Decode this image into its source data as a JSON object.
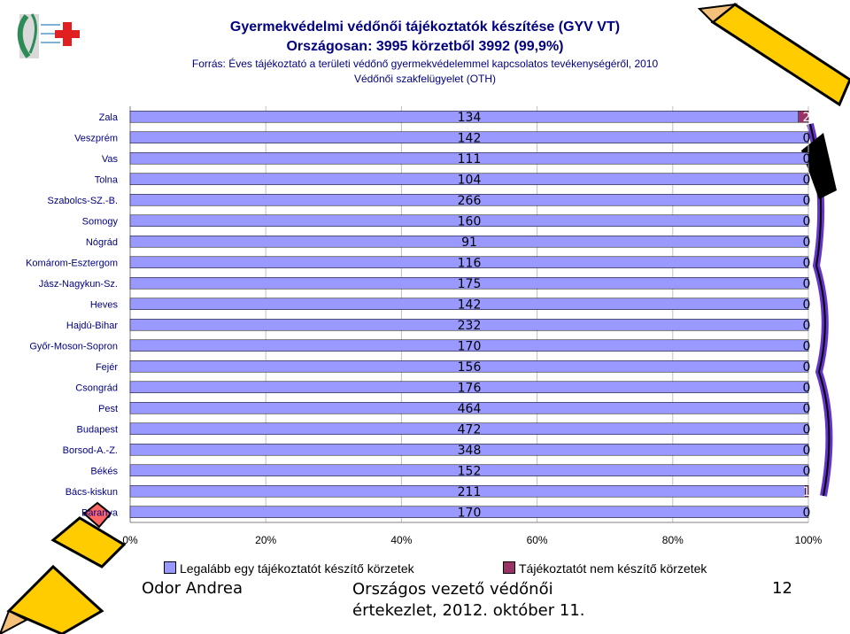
{
  "header": {
    "line1": "Gyermekvédelmi védőnői tájékoztatók készítése (GYV VT)",
    "line2": "Országosan: 3995 körzetből 3992 (99,9%)",
    "line3": "Forrás: Éves tájékoztató a területi védőnő gyermekvédelemmel kapcsolatos tevékenységéről, 2010",
    "line4": "Védőnői szakfelügyelet (OTH)"
  },
  "chart_data": {
    "type": "bar",
    "orientation": "horizontal",
    "stacked": "percent",
    "categories": [
      "Zala",
      "Veszprém",
      "Vas",
      "Tolna",
      "Szabolcs-SZ.-B.",
      "Somogy",
      "Nógrád",
      "Komárom-Esztergom",
      "Jász-Nagykun-Sz.",
      "Heves",
      "Hajdú-Bihar",
      "Győr-Moson-Sopron",
      "Fejér",
      "Csongrád",
      "Pest",
      "Budapest",
      "Borsod-A.-Z.",
      "Békés",
      "Bács-kiskun",
      "Baranya"
    ],
    "series": [
      {
        "name": "Legalább egy tájékoztatót készítő körzetek",
        "color": "#9999FF",
        "values": [
          134,
          142,
          111,
          104,
          266,
          160,
          91,
          116,
          175,
          142,
          232,
          170,
          156,
          176,
          464,
          472,
          348,
          152,
          211,
          170
        ]
      },
      {
        "name": "Tájékoztatót nem készítő körzetek",
        "color": "#993366",
        "values": [
          2,
          0,
          0,
          0,
          0,
          0,
          0,
          0,
          0,
          0,
          0,
          0,
          0,
          0,
          0,
          0,
          0,
          0,
          1,
          0
        ]
      }
    ],
    "x_ticks": [
      "0%",
      "20%",
      "40%",
      "60%",
      "80%",
      "100%"
    ],
    "xlim": [
      0,
      100
    ]
  },
  "footer": {
    "author": "Odor Andrea",
    "event_line1": "Országos vezető védőnői",
    "event_line2": "értekezlet, 2012. október 11.",
    "page": "12"
  },
  "decor": {
    "logo": "hungarian-health-logo-icon",
    "pencil_left": "pencil-icon",
    "pencil_right": "pencil-icon"
  }
}
